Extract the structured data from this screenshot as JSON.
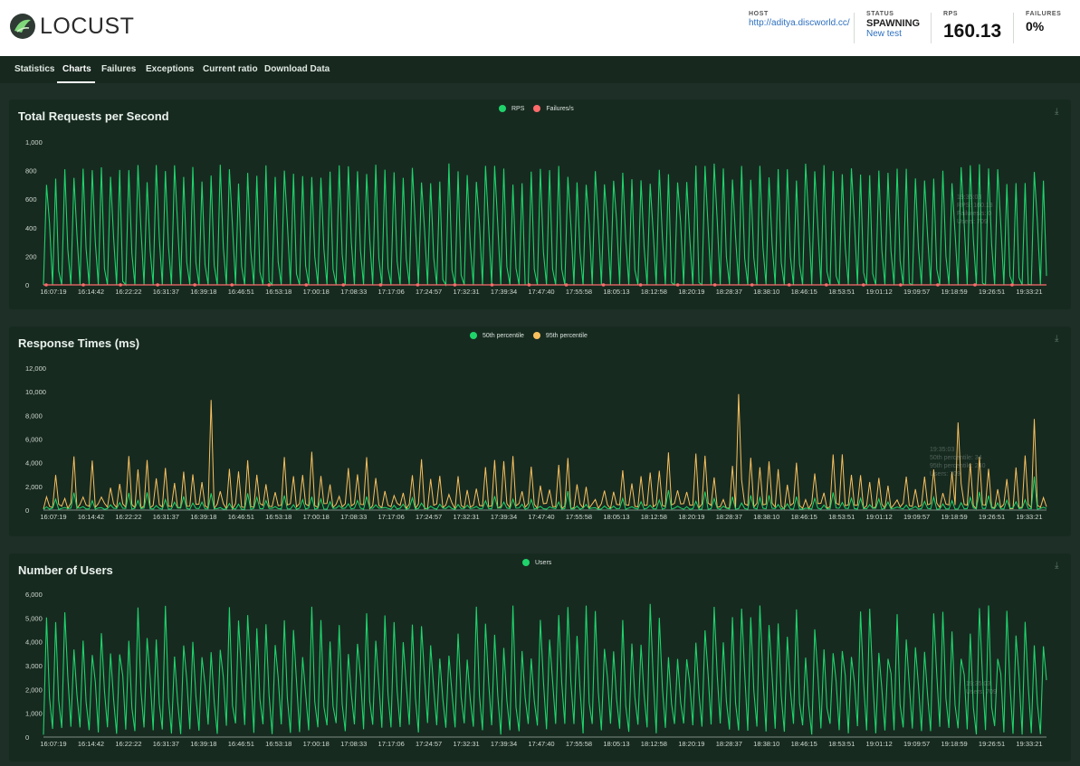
{
  "header": {
    "logo_text": "LOCUST",
    "host_label": "HOST",
    "host_value": "http://aditya.discworld.cc/",
    "status_label": "STATUS",
    "status_value": "SPAWNING",
    "new_test_label": "New test",
    "rps_label": "RPS",
    "rps_value": "160.13",
    "failures_label": "FAILURES",
    "failures_value": "0%"
  },
  "nav": {
    "tabs": [
      {
        "label": "Statistics",
        "active": false
      },
      {
        "label": "Charts",
        "active": true
      },
      {
        "label": "Failures",
        "active": false
      },
      {
        "label": "Exceptions",
        "active": false
      },
      {
        "label": "Current ratio",
        "active": false
      },
      {
        "label": "Download Data",
        "active": false
      }
    ]
  },
  "colors": {
    "accent": "#00c853",
    "green_line": "#1fd36b",
    "yellow_line": "#f7c05e",
    "red_line": "#ff6b6b",
    "panel": "#172a20"
  },
  "icons": {
    "download": "download-icon",
    "logo": "locust-logo-icon"
  },
  "x_ticks": [
    "16:07:19",
    "16:14:42",
    "16:22:22",
    "16:31:37",
    "16:39:18",
    "16:46:51",
    "16:53:18",
    "17:00:18",
    "17:08:33",
    "17:17:06",
    "17:24:57",
    "17:32:31",
    "17:39:34",
    "17:47:40",
    "17:55:58",
    "18:05:13",
    "18:12:58",
    "18:20:19",
    "18:28:37",
    "18:38:10",
    "18:46:15",
    "18:53:51",
    "19:01:12",
    "19:09:57",
    "19:18:59",
    "19:26:51",
    "19:33:21"
  ],
  "chart_data": [
    {
      "type": "line",
      "title": "Total Requests per Second",
      "series": [
        {
          "name": "RPS",
          "color": "#1fd36b"
        },
        {
          "name": "Failures/s",
          "color": "#ff6b6b",
          "values": [
            0,
            0,
            0,
            0,
            0,
            0,
            0,
            0,
            0,
            0,
            0,
            0,
            0,
            0,
            0,
            0,
            0,
            0,
            0,
            0,
            0,
            0,
            0,
            0,
            0,
            0,
            0
          ]
        }
      ],
      "ylim": [
        0,
        1000
      ],
      "yticks": [
        "1,000",
        "800",
        "600",
        "400",
        "200",
        "0"
      ],
      "rps_peak_range": [
        700,
        850
      ],
      "tooltip": [
        "19:35:03",
        "RPS: 160.13",
        "Failures/s: 0",
        "Users: 709"
      ]
    },
    {
      "type": "line",
      "title": "Response Times (ms)",
      "series": [
        {
          "name": "50th percentile",
          "color": "#1fd36b"
        },
        {
          "name": "95th percentile",
          "color": "#f7c05e"
        }
      ],
      "ylim": [
        0,
        12000
      ],
      "yticks": [
        "12,000",
        "10,000",
        "8,000",
        "6,000",
        "4,000",
        "2,000",
        "0"
      ],
      "p95_peak_max": 9800,
      "tooltip": [
        "19:35:03",
        "50th percentile: 34",
        "95th percentile: 240",
        "Users: 709"
      ]
    },
    {
      "type": "line",
      "title": "Number of Users",
      "series": [
        {
          "name": "Users",
          "color": "#1fd36b"
        }
      ],
      "ylim": [
        0,
        6000
      ],
      "yticks": [
        "6,000",
        "5,000",
        "4,000",
        "3,000",
        "2,000",
        "1,000",
        "0"
      ],
      "users_peak_max": 5600,
      "tooltip": [
        "19:35:03",
        "Users: 709"
      ]
    }
  ]
}
